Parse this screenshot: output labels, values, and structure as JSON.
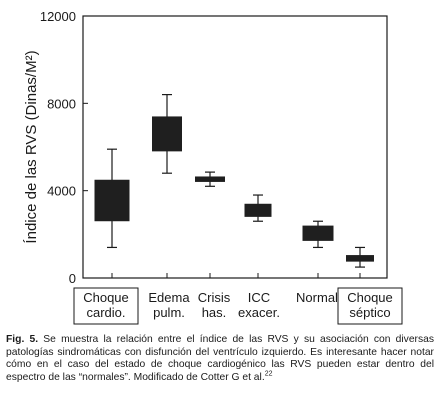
{
  "chart_data": {
    "type": "box",
    "ylabel": "Índice de las RVS (Dinas/M²)",
    "ylim": [
      0,
      12000
    ],
    "yticks": [
      0,
      4000,
      8000,
      12000
    ],
    "ytick_labels": [
      "0",
      "4000",
      "8000",
      "12000"
    ],
    "categories": [
      {
        "lines": [
          "Choque",
          "cardio."
        ],
        "boxed": true
      },
      {
        "lines": [
          "Edema",
          "pulm."
        ],
        "boxed": false
      },
      {
        "lines": [
          "Crisis",
          "has."
        ],
        "boxed": false
      },
      {
        "lines": [
          "ICC",
          "exacer."
        ],
        "boxed": false
      },
      {
        "lines": [
          "Normal"
        ],
        "boxed": false
      },
      {
        "lines": [
          "Choque",
          "séptico"
        ],
        "boxed": true
      }
    ],
    "boxes": [
      {
        "min": 1400,
        "q1": 2600,
        "q3": 4500,
        "max": 5900
      },
      {
        "min": 4800,
        "q1": 5800,
        "q3": 7400,
        "max": 8400
      },
      {
        "min": 4200,
        "q1": 4400,
        "q3": 4650,
        "max": 4850
      },
      {
        "min": 2600,
        "q1": 2800,
        "q3": 3400,
        "max": 3800
      },
      {
        "min": 1400,
        "q1": 1700,
        "q3": 2400,
        "max": 2600
      },
      {
        "min": 500,
        "q1": 750,
        "q3": 1050,
        "max": 1400
      }
    ],
    "box_color": "#1f1f1f"
  },
  "caption": {
    "label": "Fig. 5.",
    "text": " Se muestra la relación entre el índice de las RVS y su asociación con diversas patologías sindromáticas con disfunción del ventrículo izquierdo. Es interesante hacer notar cómo en el caso del estado de choque cardiogénico las RVS pueden estar dentro del espectro de las “normales”. Modificado de Cotter G et al.",
    "ref": "22"
  }
}
